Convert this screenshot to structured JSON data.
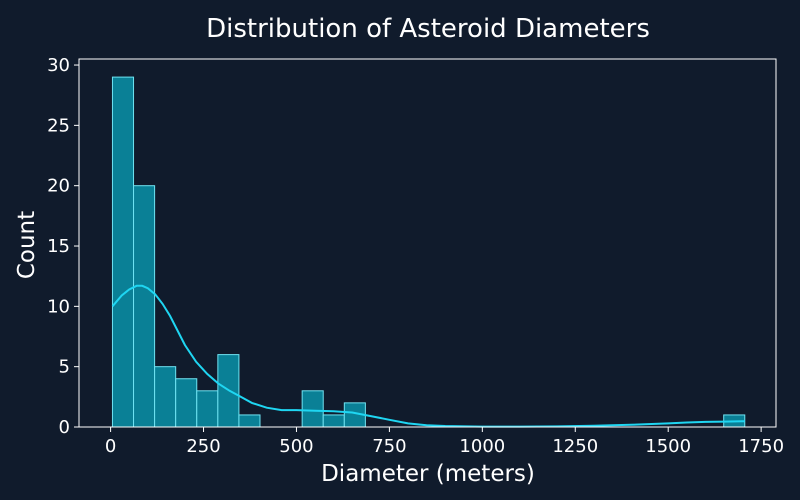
{
  "colors": {
    "background": "#101b2c",
    "bar_fill": "#0a8096",
    "bar_edge": "#6fe3f2",
    "kde_line": "#1fd6f2",
    "frame": "#ffffff",
    "text": "#ffffff"
  },
  "chart_data": {
    "type": "bar",
    "title": "Distribution of Asteroid Diameters",
    "xlabel": "Diameter (meters)",
    "ylabel": "Count",
    "xlim": [
      -85,
      1790
    ],
    "ylim": [
      0,
      30.5
    ],
    "xticks": [
      0,
      250,
      500,
      750,
      1000,
      1250,
      1500,
      1750
    ],
    "yticks": [
      0,
      5,
      10,
      15,
      20,
      25,
      30
    ],
    "grid": false,
    "bin_width": 56.7,
    "bins": [
      {
        "x0": 5,
        "x1": 61.7,
        "count": 29
      },
      {
        "x0": 61.7,
        "x1": 118.4,
        "count": 20
      },
      {
        "x0": 118.4,
        "x1": 175.1,
        "count": 5
      },
      {
        "x0": 175.1,
        "x1": 231.8,
        "count": 4
      },
      {
        "x0": 231.8,
        "x1": 288.5,
        "count": 3
      },
      {
        "x0": 288.5,
        "x1": 345.2,
        "count": 6
      },
      {
        "x0": 345.2,
        "x1": 401.9,
        "count": 1
      },
      {
        "x0": 515.3,
        "x1": 572.0,
        "count": 3
      },
      {
        "x0": 572.0,
        "x1": 628.7,
        "count": 1
      },
      {
        "x0": 628.7,
        "x1": 685.4,
        "count": 2
      },
      {
        "x0": 1649.3,
        "x1": 1706.0,
        "count": 1
      }
    ],
    "kde": {
      "x": [
        5,
        30,
        50,
        70,
        85,
        100,
        120,
        140,
        160,
        180,
        200,
        230,
        260,
        290,
        320,
        350,
        380,
        420,
        460,
        500,
        550,
        600,
        650,
        700,
        750,
        800,
        850,
        900,
        1000,
        1100,
        1200,
        1300,
        1400,
        1500,
        1550,
        1600,
        1650,
        1700,
        1706
      ],
      "y": [
        10.0,
        10.9,
        11.4,
        11.7,
        11.7,
        11.5,
        11.0,
        10.2,
        9.2,
        8.0,
        6.8,
        5.4,
        4.4,
        3.6,
        3.0,
        2.5,
        2.0,
        1.6,
        1.4,
        1.4,
        1.35,
        1.3,
        1.2,
        0.9,
        0.6,
        0.3,
        0.15,
        0.08,
        0.03,
        0.03,
        0.05,
        0.1,
        0.18,
        0.3,
        0.37,
        0.42,
        0.45,
        0.47,
        0.47
      ]
    }
  }
}
